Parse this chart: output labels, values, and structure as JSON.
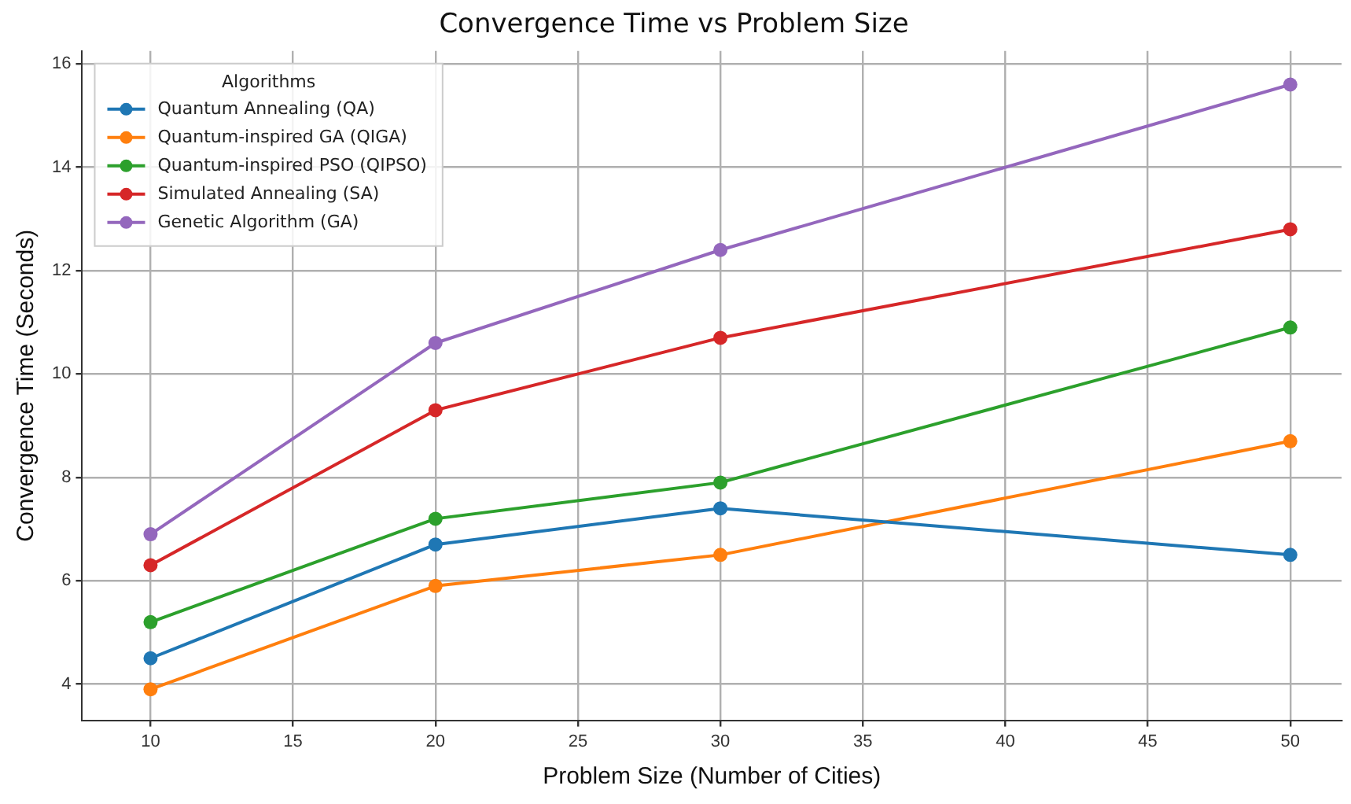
{
  "chart_data": {
    "type": "line",
    "title": "Convergence Time vs Problem Size",
    "xlabel": "Problem Size (Number of Cities)",
    "ylabel": "Convergence Time (Seconds)",
    "legend_title": "Algorithms",
    "x": [
      10,
      20,
      30,
      50
    ],
    "series": [
      {
        "name": "Quantum Annealing (QA)",
        "color": "#1f77b4",
        "values": [
          4.5,
          6.7,
          7.4,
          6.5
        ]
      },
      {
        "name": "Quantum-inspired GA (QIGA)",
        "color": "#ff7f0e",
        "values": [
          3.9,
          5.9,
          6.5,
          8.7
        ]
      },
      {
        "name": "Quantum-inspired PSO (QIPSO)",
        "color": "#2ca02c",
        "values": [
          5.2,
          7.2,
          7.9,
          10.9
        ]
      },
      {
        "name": "Simulated Annealing (SA)",
        "color": "#d62728",
        "values": [
          6.3,
          9.3,
          10.7,
          12.8
        ]
      },
      {
        "name": "Genetic Algorithm (GA)",
        "color": "#9467bd",
        "values": [
          6.9,
          10.6,
          12.4,
          15.6
        ]
      }
    ],
    "xlim": [
      7.6,
      51.8
    ],
    "xticks": [
      10,
      15,
      20,
      25,
      30,
      35,
      40,
      45,
      50
    ],
    "ylim": [
      3.3,
      16.25
    ],
    "yticks": [
      4,
      6,
      8,
      10,
      12,
      14,
      16
    ],
    "grid": true,
    "legend": "top left",
    "marker": "circle",
    "line_style": "solid"
  }
}
